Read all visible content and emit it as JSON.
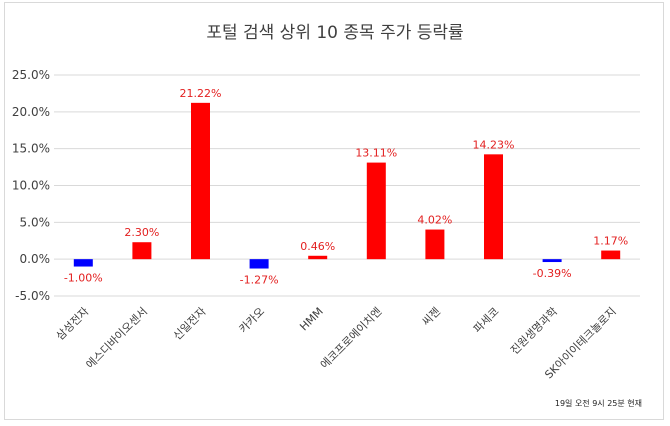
{
  "chart_data": {
    "type": "bar",
    "title": "포털 검색 상위 10 종목 주가 등락률",
    "categories": [
      "삼성전자",
      "에스디바이오센서",
      "신일전자",
      "카카오",
      "HMM",
      "에코프로에이치엔",
      "씨젠",
      "파세코",
      "진원생명과학",
      "SK아이이테크놀로지"
    ],
    "values": [
      -1.0,
      2.3,
      21.22,
      -1.27,
      0.46,
      13.11,
      4.02,
      14.23,
      -0.39,
      1.17
    ],
    "data_labels": [
      "-1.00%",
      "2.30%",
      "21.22%",
      "-1.27%",
      "0.46%",
      "13.11%",
      "4.02%",
      "14.23%",
      "-0.39%",
      "1.17%"
    ],
    "y_ticks": [
      "25.0%",
      "20.0%",
      "15.0%",
      "10.0%",
      "5.0%",
      "0.0%",
      "-5.0%"
    ],
    "ylim": [
      -5,
      25
    ],
    "grid": true,
    "colors": {
      "positive": "#ff0000",
      "negative": "#0000ff",
      "label": "#e32020"
    },
    "footnote": "19일 오전 9시 25분 현재"
  }
}
